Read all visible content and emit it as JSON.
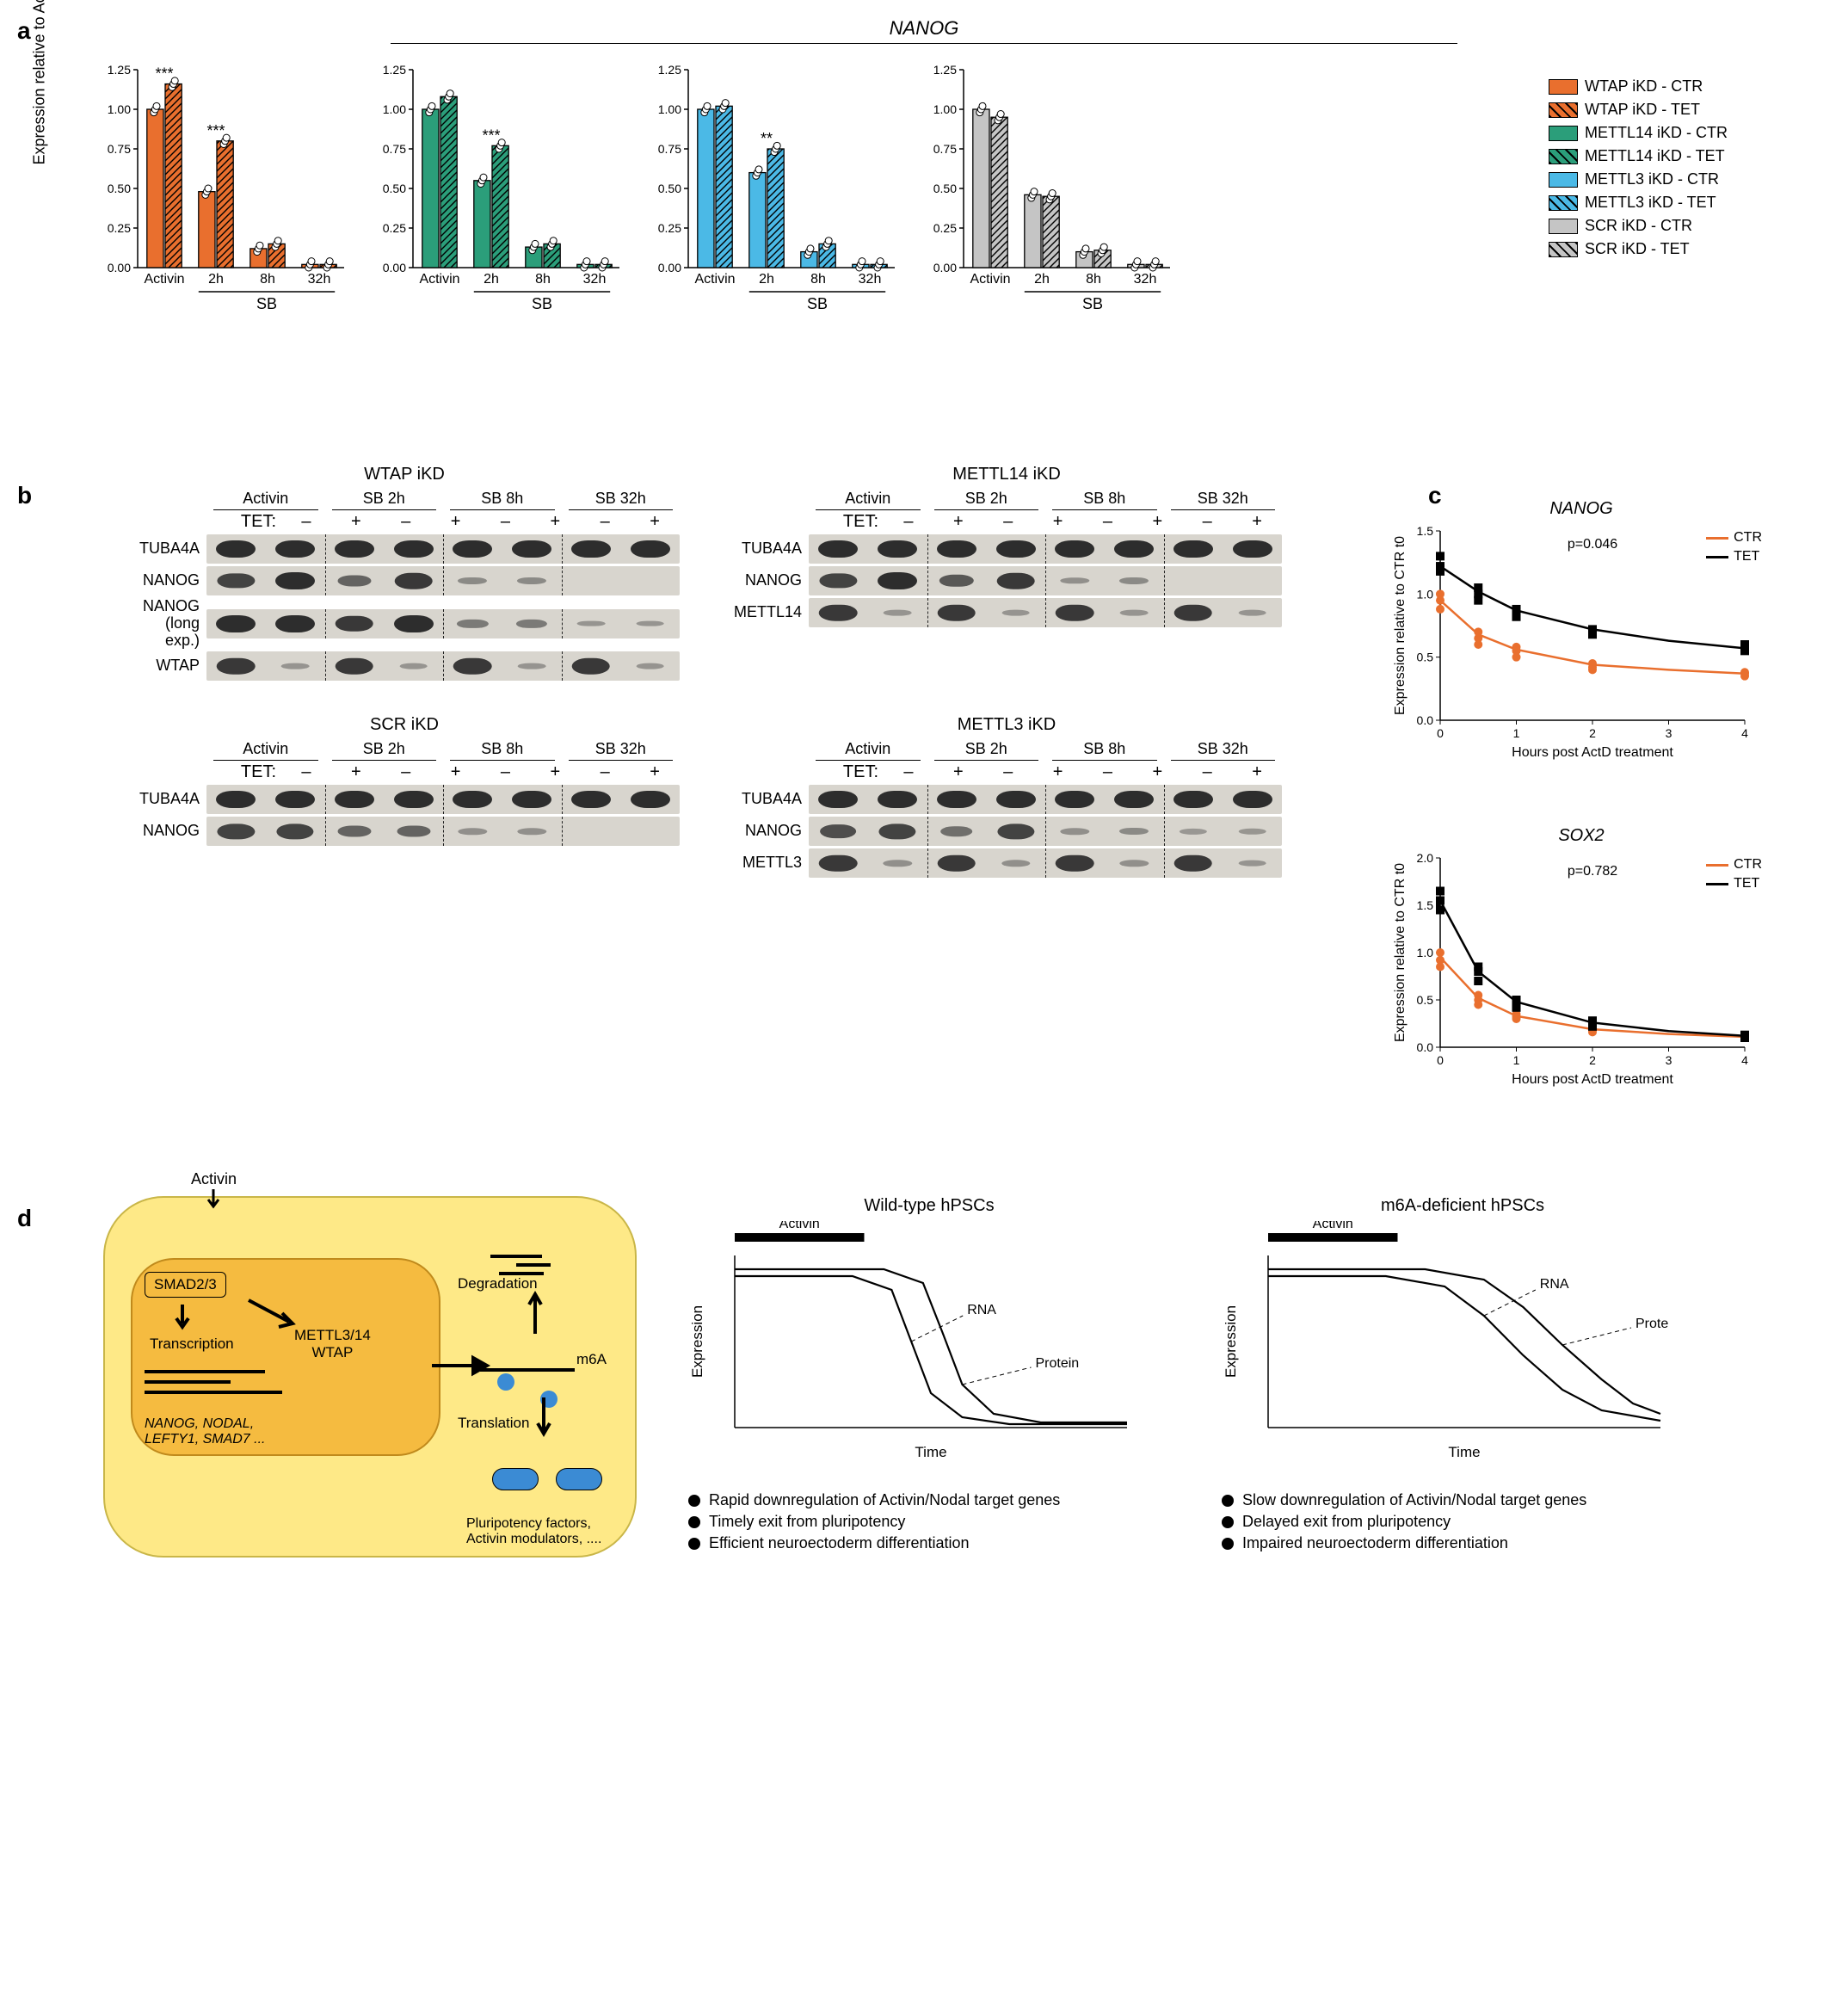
{
  "panelA": {
    "title": "NANOG",
    "ylabel": "Expression relative\nto Activin CTR",
    "ylim": [
      0,
      1.25
    ],
    "yticks": [
      0.0,
      0.25,
      0.5,
      0.75,
      1.0,
      1.25
    ],
    "categories": [
      "Activin",
      "2h",
      "8h",
      "32h"
    ],
    "sb_label": "SB",
    "charts": [
      {
        "name": "WTAP iKD",
        "color": "#e96f2e",
        "ctr": [
          1.0,
          0.48,
          0.12,
          0.02
        ],
        "tet": [
          1.16,
          0.8,
          0.15,
          0.02
        ],
        "stars": [
          "***",
          "***",
          "",
          ""
        ]
      },
      {
        "name": "METTL14 iKD",
        "color": "#2b9e7a",
        "ctr": [
          1.0,
          0.55,
          0.13,
          0.02
        ],
        "tet": [
          1.08,
          0.77,
          0.15,
          0.02
        ],
        "stars": [
          "",
          "***",
          "",
          ""
        ]
      },
      {
        "name": "METTL3 iKD",
        "color": "#4bb9e6",
        "ctr": [
          1.0,
          0.6,
          0.1,
          0.02
        ],
        "tet": [
          1.02,
          0.75,
          0.15,
          0.02
        ],
        "stars": [
          "",
          "**",
          "",
          ""
        ]
      },
      {
        "name": "SCR iKD",
        "color": "#c5c5c5",
        "ctr": [
          1.0,
          0.46,
          0.1,
          0.02
        ],
        "tet": [
          0.95,
          0.45,
          0.11,
          0.02
        ],
        "stars": [
          "",
          "",
          "",
          ""
        ]
      }
    ],
    "legend": [
      {
        "label": "WTAP iKD - CTR",
        "fill": "#e96f2e",
        "hatched": false
      },
      {
        "label": "WTAP iKD - TET",
        "fill": "#e96f2e",
        "hatched": true
      },
      {
        "label": "METTL14 iKD - CTR",
        "fill": "#2b9e7a",
        "hatched": false
      },
      {
        "label": "METTL14 iKD - TET",
        "fill": "#2b9e7a",
        "hatched": true
      },
      {
        "label": "METTL3 iKD - CTR",
        "fill": "#4bb9e6",
        "hatched": false
      },
      {
        "label": "METTL3 iKD - TET",
        "fill": "#4bb9e6",
        "hatched": true
      },
      {
        "label": "SCR iKD - CTR",
        "fill": "#c5c5c5",
        "hatched": false
      },
      {
        "label": "SCR iKD - TET",
        "fill": "#c5c5c5",
        "hatched": true
      }
    ],
    "bar_width": 0.35,
    "data_point_radius": 4
  },
  "panelB": {
    "conditions": [
      "Activin",
      "SB 2h",
      "SB 8h",
      "SB 32h"
    ],
    "tet_row_label": "TET:",
    "tet_signs": [
      "–",
      "+",
      "–",
      "+",
      "–",
      "+",
      "–",
      "+"
    ],
    "blocks": [
      {
        "title": "WTAP iKD",
        "rows": [
          {
            "label": "TUBA4A",
            "bands": [
              1,
              1,
              1,
              1,
              1,
              1,
              1,
              1
            ]
          },
          {
            "label": "NANOG",
            "bands": [
              0.8,
              1,
              0.5,
              0.9,
              0.15,
              0.15,
              0,
              0
            ]
          },
          {
            "label": "NANOG\n(long exp.)",
            "bands": [
              1,
              1,
              0.9,
              1,
              0.3,
              0.3,
              0.05,
              0.05
            ]
          },
          {
            "label": "WTAP",
            "bands": [
              0.9,
              0.05,
              0.9,
              0.05,
              0.9,
              0.05,
              0.9,
              0.05
            ]
          }
        ]
      },
      {
        "title": "METTL14 iKD",
        "rows": [
          {
            "label": "TUBA4A",
            "bands": [
              1,
              1,
              1,
              1,
              1,
              1,
              1,
              1
            ]
          },
          {
            "label": "NANOG",
            "bands": [
              0.8,
              1,
              0.6,
              0.9,
              0.1,
              0.15,
              0,
              0
            ]
          },
          {
            "label": "METTL14",
            "bands": [
              0.9,
              0.05,
              0.9,
              0.05,
              0.9,
              0.05,
              0.9,
              0.05
            ]
          }
        ]
      },
      {
        "title": "SCR iKD",
        "rows": [
          {
            "label": "TUBA4A",
            "bands": [
              1,
              1,
              1,
              1,
              1,
              1,
              1,
              1
            ]
          },
          {
            "label": "NANOG",
            "bands": [
              0.8,
              0.8,
              0.5,
              0.5,
              0.1,
              0.1,
              0,
              0
            ]
          }
        ]
      },
      {
        "title": "METTL3 iKD",
        "rows": [
          {
            "label": "TUBA4A",
            "bands": [
              1,
              1,
              1,
              1,
              1,
              1,
              1,
              1
            ]
          },
          {
            "label": "NANOG",
            "bands": [
              0.7,
              0.8,
              0.4,
              0.8,
              0.1,
              0.15,
              0.02,
              0.04
            ]
          },
          {
            "label": "METTL3",
            "bands": [
              0.9,
              0.1,
              0.9,
              0.1,
              0.9,
              0.1,
              0.9,
              0.05
            ]
          }
        ]
      }
    ]
  },
  "panelC": {
    "xlabel": "Hours post ActD treatment",
    "ylabel": "Expression relative to CTR t0",
    "xlim": [
      0,
      4
    ],
    "xticks": [
      0,
      1,
      2,
      3,
      4
    ],
    "legend": [
      {
        "label": "CTR",
        "color": "#e96f2e"
      },
      {
        "label": "TET",
        "color": "#000000"
      }
    ],
    "charts": [
      {
        "title": "NANOG",
        "pvalue": "p=0.046",
        "ylim": [
          0,
          1.5
        ],
        "yticks": [
          0,
          0.5,
          1.0,
          1.5
        ],
        "ctr": {
          "x": [
            0,
            0,
            0,
            0.5,
            0.5,
            0.5,
            1,
            1,
            1,
            2,
            2,
            2,
            4,
            4,
            4
          ],
          "y": [
            1.0,
            0.95,
            0.88,
            0.7,
            0.65,
            0.6,
            0.58,
            0.55,
            0.5,
            0.45,
            0.42,
            0.4,
            0.38,
            0.37,
            0.35
          ]
        },
        "tet": {
          "x": [
            0,
            0,
            0,
            0.5,
            0.5,
            0.5,
            1,
            1,
            1,
            2,
            2,
            2,
            4,
            4,
            4
          ],
          "y": [
            1.3,
            1.22,
            1.18,
            1.05,
            1.0,
            0.95,
            0.88,
            0.85,
            0.82,
            0.72,
            0.7,
            0.68,
            0.6,
            0.58,
            0.55
          ]
        },
        "ctr_curve": [
          [
            0,
            0.95
          ],
          [
            0.5,
            0.68
          ],
          [
            1,
            0.56
          ],
          [
            2,
            0.44
          ],
          [
            3,
            0.4
          ],
          [
            4,
            0.37
          ]
        ],
        "tet_curve": [
          [
            0,
            1.22
          ],
          [
            0.5,
            1.02
          ],
          [
            1,
            0.87
          ],
          [
            2,
            0.72
          ],
          [
            3,
            0.63
          ],
          [
            4,
            0.57
          ]
        ]
      },
      {
        "title": "SOX2",
        "pvalue": "p=0.782",
        "ylim": [
          0,
          2.0
        ],
        "yticks": [
          0,
          0.5,
          1.0,
          1.5,
          2.0
        ],
        "ctr": {
          "x": [
            0,
            0,
            0,
            0.5,
            0.5,
            0.5,
            1,
            1,
            1,
            2,
            2,
            2,
            4,
            4,
            4
          ],
          "y": [
            1.0,
            0.92,
            0.85,
            0.55,
            0.5,
            0.45,
            0.35,
            0.32,
            0.3,
            0.2,
            0.18,
            0.16,
            0.12,
            0.11,
            0.1
          ]
        },
        "tet": {
          "x": [
            0,
            0,
            0,
            0.5,
            0.5,
            0.5,
            1,
            1,
            1,
            2,
            2,
            2,
            4,
            4,
            4
          ],
          "y": [
            1.65,
            1.55,
            1.45,
            0.85,
            0.8,
            0.7,
            0.5,
            0.45,
            0.42,
            0.28,
            0.25,
            0.22,
            0.13,
            0.12,
            0.1
          ]
        },
        "ctr_curve": [
          [
            0,
            0.95
          ],
          [
            0.5,
            0.52
          ],
          [
            1,
            0.33
          ],
          [
            2,
            0.19
          ],
          [
            3,
            0.14
          ],
          [
            4,
            0.11
          ]
        ],
        "tet_curve": [
          [
            0,
            1.55
          ],
          [
            0.5,
            0.8
          ],
          [
            1,
            0.48
          ],
          [
            2,
            0.26
          ],
          [
            3,
            0.17
          ],
          [
            4,
            0.12
          ]
        ]
      }
    ]
  },
  "panelD": {
    "cartoon": {
      "activin": "Activin",
      "smad": "SMAD2/3",
      "transcription": "Transcription",
      "writers": "METTL3/14\nWTAP",
      "genes_italic": "NANOG, NODAL,\nLEFTY1, SMAD7 ...",
      "degradation": "Degradation",
      "m6a": "m6A",
      "translation": "Translation",
      "products": "Pluripotency factors,\nActivin modulators, ...."
    },
    "blocks": [
      {
        "title": "Wild-type hPSCs",
        "activin_label": "Activin",
        "rna_label": "RNA",
        "protein_label": "Protein",
        "xlabel": "Time",
        "ylabel": "Expression",
        "rna_curve": [
          [
            0,
            0.88
          ],
          [
            0.3,
            0.88
          ],
          [
            0.4,
            0.8
          ],
          [
            0.45,
            0.5
          ],
          [
            0.5,
            0.2
          ],
          [
            0.58,
            0.06
          ],
          [
            0.7,
            0.02
          ],
          [
            1.0,
            0.02
          ]
        ],
        "prot_curve": [
          [
            0,
            0.92
          ],
          [
            0.38,
            0.92
          ],
          [
            0.48,
            0.84
          ],
          [
            0.53,
            0.55
          ],
          [
            0.58,
            0.25
          ],
          [
            0.66,
            0.08
          ],
          [
            0.78,
            0.03
          ],
          [
            1.0,
            0.03
          ]
        ],
        "bullets": [
          "Rapid downregulation of Activin/Nodal target genes",
          "Timely exit from pluripotency",
          "Efficient neuroectoderm differentiation"
        ]
      },
      {
        "title": "m6A-deficient hPSCs",
        "activin_label": "Activin",
        "rna_label": "RNA",
        "protein_label": "Protein",
        "xlabel": "Time",
        "ylabel": "Expression",
        "rna_curve": [
          [
            0,
            0.88
          ],
          [
            0.3,
            0.88
          ],
          [
            0.45,
            0.82
          ],
          [
            0.55,
            0.65
          ],
          [
            0.65,
            0.42
          ],
          [
            0.75,
            0.22
          ],
          [
            0.85,
            0.1
          ],
          [
            1.0,
            0.04
          ]
        ],
        "prot_curve": [
          [
            0,
            0.92
          ],
          [
            0.4,
            0.92
          ],
          [
            0.55,
            0.86
          ],
          [
            0.65,
            0.7
          ],
          [
            0.75,
            0.48
          ],
          [
            0.85,
            0.28
          ],
          [
            0.93,
            0.14
          ],
          [
            1.0,
            0.08
          ]
        ],
        "bullets": [
          "Slow downregulation of Activin/Nodal target genes",
          "Delayed exit from pluripotency",
          "Impaired neuroectoderm differentiation"
        ]
      }
    ]
  }
}
